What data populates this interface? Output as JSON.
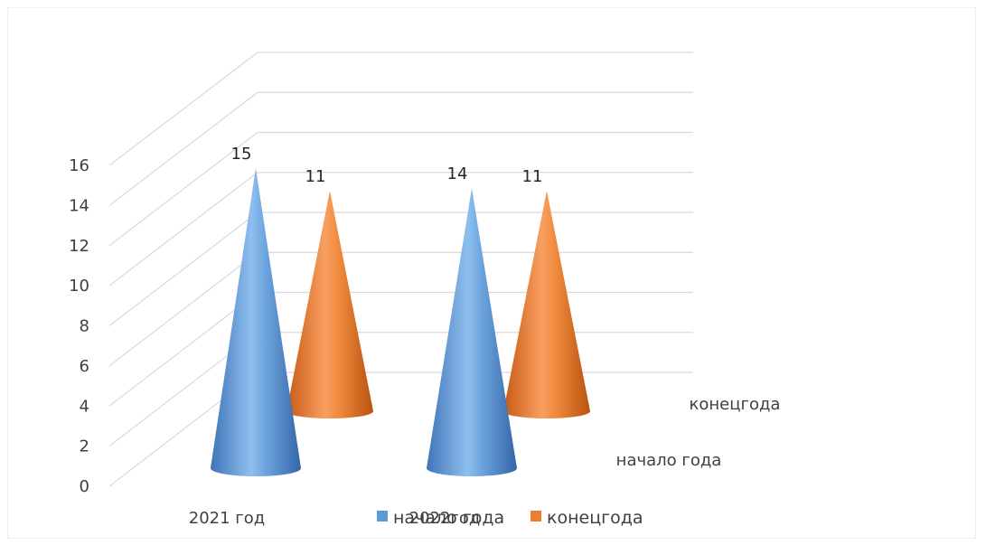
{
  "chart_data": {
    "type": "bar",
    "variant": "3d-cone",
    "categories": [
      "2021 год",
      "2022год"
    ],
    "series": [
      {
        "name": "начало года",
        "values": [
          15,
          14
        ],
        "color": "#5b9bd5"
      },
      {
        "name": "конецгода",
        "values": [
          11,
          11
        ],
        "color": "#ed7d31"
      }
    ],
    "y_ticks": [
      "0",
      "2",
      "4",
      "6",
      "8",
      "10",
      "12",
      "14",
      "16"
    ],
    "ylim": [
      0,
      16
    ],
    "depth_axis_labels": [
      "начало года",
      "конецгода"
    ],
    "legend": {
      "position": "bottom",
      "items": [
        "начало года",
        "конецгода"
      ]
    },
    "grid": true
  }
}
